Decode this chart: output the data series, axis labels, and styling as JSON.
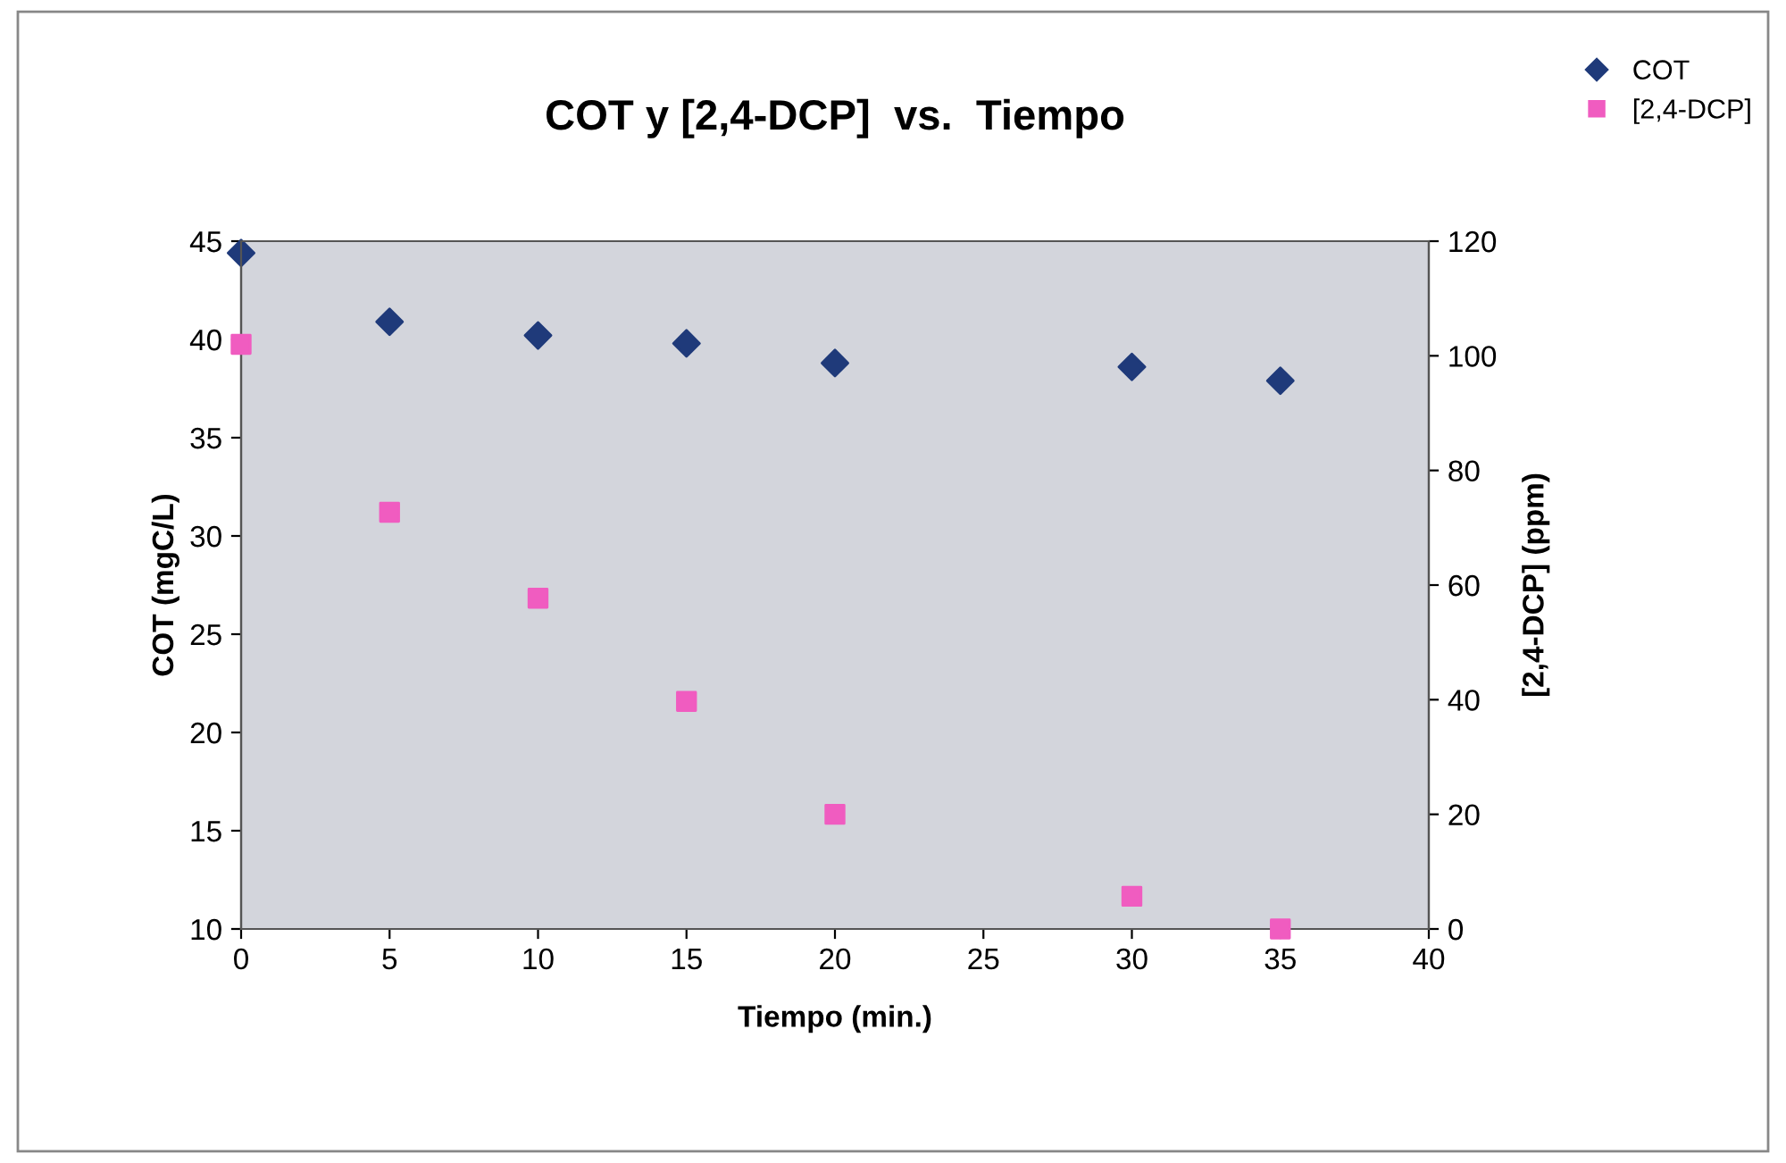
{
  "chart_data": {
    "type": "scatter",
    "title": "COT y [2,4-DCP]  vs.  Tiempo",
    "xlabel": "Tiempo (min.)",
    "ylabel": "COT (mgC/L)",
    "y2label": "[2,4-DCP] (ppm)",
    "x": [
      0,
      5,
      10,
      15,
      20,
      30,
      35
    ],
    "series": [
      {
        "name": "COT",
        "color": "#1f3a7a",
        "marker": "diamond",
        "values": [
          44.4,
          40.9,
          40.2,
          39.8,
          38.8,
          38.6,
          37.9
        ]
      },
      {
        "name": "[2,4-DCP]",
        "color": "#f05cc0",
        "marker": "square",
        "axis": "y2",
        "values": [
          102,
          72.7,
          57.7,
          39.7,
          20,
          5.7,
          0
        ]
      }
    ],
    "xlim": [
      0,
      40
    ],
    "xticks": [
      0,
      5,
      10,
      15,
      20,
      25,
      30,
      35,
      40
    ],
    "ylim": [
      10,
      45
    ],
    "yticks": [
      10,
      15,
      20,
      25,
      30,
      35,
      40,
      45
    ],
    "y2lim": [
      0,
      120
    ],
    "y2ticks": [
      0,
      20,
      40,
      60,
      80,
      100,
      120
    ],
    "grid": false,
    "legend": "top right"
  }
}
